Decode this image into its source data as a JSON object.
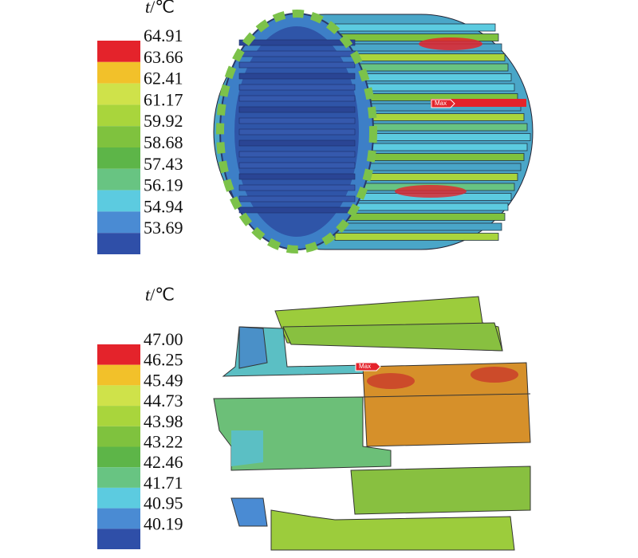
{
  "panels": [
    {
      "legend": {
        "symbol": "t",
        "unit": "/℃",
        "labels": [
          "64.91",
          "63.66",
          "62.41",
          "61.17",
          "59.92",
          "58.68",
          "57.43",
          "56.19",
          "54.94",
          "53.69"
        ],
        "colors": [
          "#e4232b",
          "#f2c12a",
          "#cfe24a",
          "#a9d53c",
          "#7fc23e",
          "#5db548",
          "#68c482",
          "#5ccbe0",
          "#4a8bd3",
          "#2f4fa8"
        ]
      },
      "marker": "Max"
    },
    {
      "legend": {
        "symbol": "t",
        "unit": "/℃",
        "labels": [
          "47.00",
          "46.25",
          "45.49",
          "44.73",
          "43.98",
          "43.22",
          "42.46",
          "41.71",
          "40.95",
          "40.19"
        ],
        "colors": [
          "#e4232b",
          "#f2c12a",
          "#cfe24a",
          "#a9d53c",
          "#7fc23e",
          "#5db548",
          "#68c482",
          "#5ccbe0",
          "#4a8bd3",
          "#2f4fa8"
        ]
      },
      "marker": "Max"
    }
  ]
}
